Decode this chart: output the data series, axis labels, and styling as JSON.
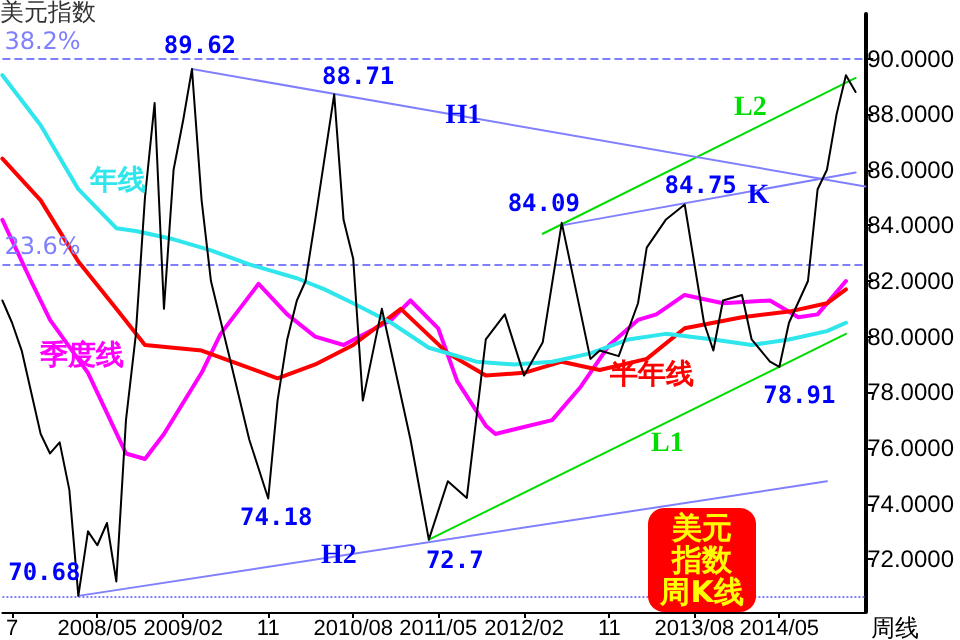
{
  "chart_data": {
    "type": "line",
    "title": "美元指数",
    "xlabel": "周线",
    "xlim": [
      "2007-07",
      "2015-02"
    ],
    "xticks": [
      {
        "value": "2007-08",
        "label": "7"
      },
      {
        "value": "2008-05",
        "label": "2008/05"
      },
      {
        "value": "2009-02",
        "label": "2009/02"
      },
      {
        "value": "2009-11",
        "label": "11"
      },
      {
        "value": "2010-08",
        "label": "2010/08"
      },
      {
        "value": "2011-05",
        "label": "2011/05"
      },
      {
        "value": "2012-02",
        "label": "2012/02"
      },
      {
        "value": "2012-11",
        "label": "11"
      },
      {
        "value": "2013-08",
        "label": "2013/08"
      },
      {
        "value": "2014-05",
        "label": "2014/05"
      }
    ],
    "ylim": [
      70.1,
      91.6
    ],
    "yticks": [
      {
        "value": 72,
        "label": "72.0000"
      },
      {
        "value": 74,
        "label": "74.0000"
      },
      {
        "value": 76,
        "label": "76.0000"
      },
      {
        "value": 78,
        "label": "78.0000"
      },
      {
        "value": 80,
        "label": "80.0000"
      },
      {
        "value": 82,
        "label": "82.0000"
      },
      {
        "value": 84,
        "label": "84.0000"
      },
      {
        "value": 86,
        "label": "86.0000"
      },
      {
        "value": 88,
        "label": "88.0000"
      },
      {
        "value": 90,
        "label": "90.0000"
      }
    ],
    "grid": false,
    "legend": false,
    "marker": "none",
    "series": [
      {
        "color": "#000000",
        "x": [
          "2007-07",
          "2007-08",
          "2007-09",
          "2007-11",
          "2007-12",
          "2008-01",
          "2008-02",
          "2008-03",
          "2008-04",
          "2008-05",
          "2008-06",
          "2008-07",
          "2008-08",
          "2008-09",
          "2008-10",
          "2008-11",
          "2008-12",
          "2009-01",
          "2009-02",
          "2009-03",
          "2009-04",
          "2009-05",
          "2009-07",
          "2009-09",
          "2009-11",
          "2009-12",
          "2010-01",
          "2010-02",
          "2010-03",
          "2010-04",
          "2010-06",
          "2010-07",
          "2010-08",
          "2010-09",
          "2010-11",
          "2011-02",
          "2011-04",
          "2011-06",
          "2011-08",
          "2011-10",
          "2011-12",
          "2012-02",
          "2012-04",
          "2012-06",
          "2012-07",
          "2012-09",
          "2012-10",
          "2012-12",
          "2013-02",
          "2013-03",
          "2013-05",
          "2013-07",
          "2013-09",
          "2013-10",
          "2013-11",
          "2014-01",
          "2014-02",
          "2014-04",
          "2014-05",
          "2014-06",
          "2014-08",
          "2014-09",
          "2014-10",
          "2014-11",
          "2014-12",
          "2015-01"
        ],
        "values": [
          81.3,
          80.5,
          79.5,
          76.5,
          75.8,
          76.2,
          74.5,
          70.68,
          73,
          72.5,
          73.3,
          71.2,
          77,
          80,
          85,
          88.4,
          81,
          86,
          87.8,
          89.62,
          84.9,
          82,
          79.2,
          76.3,
          74.18,
          77.7,
          79.9,
          81.3,
          82,
          84.2,
          88.71,
          84.2,
          82.8,
          77.7,
          81,
          76.3,
          72.7,
          74.8,
          74.2,
          79.9,
          80.8,
          78.6,
          79.8,
          84.09,
          82.5,
          79.2,
          79.5,
          79.3,
          81.2,
          83.2,
          84.2,
          84.75,
          80.5,
          79.5,
          81.3,
          81.5,
          79.9,
          79.1,
          78.91,
          80.5,
          82,
          85.3,
          86,
          88,
          89.4,
          88.8
        ]
      },
      {
        "name": "年线",
        "color": "#2ee6ec",
        "x": [
          "2007-07",
          "2007-11",
          "2008-03",
          "2008-07",
          "2008-09",
          "2009-01",
          "2009-05",
          "2009-09",
          "2010-02",
          "2010-05",
          "2010-08",
          "2010-12",
          "2011-04",
          "2011-09",
          "2012-01",
          "2012-05",
          "2012-09",
          "2013-01",
          "2013-05",
          "2013-10",
          "2014-02",
          "2014-06",
          "2014-10",
          "2014-12"
        ],
        "values": [
          89.4,
          87.6,
          85.3,
          83.9,
          83.8,
          83.5,
          83.1,
          82.6,
          82.1,
          81.7,
          81.2,
          80.5,
          79.6,
          79.1,
          79.0,
          79.1,
          79.4,
          79.9,
          80.1,
          79.9,
          79.7,
          79.9,
          80.2,
          80.5
        ]
      },
      {
        "name": "半年线",
        "color": "#ff0000",
        "x": [
          "2007-07",
          "2007-11",
          "2008-03",
          "2008-07",
          "2008-10",
          "2009-04",
          "2009-12",
          "2010-04",
          "2010-08",
          "2011-01",
          "2011-06",
          "2011-10",
          "2012-02",
          "2012-06",
          "2012-10",
          "2013-03",
          "2013-07",
          "2014-01",
          "2014-06",
          "2014-10",
          "2014-12"
        ],
        "values": [
          86.4,
          84.9,
          82.7,
          81.0,
          79.7,
          79.5,
          78.5,
          79.0,
          79.7,
          81.0,
          79.4,
          78.6,
          78.7,
          79.1,
          78.8,
          79.2,
          80.3,
          80.7,
          80.9,
          81.2,
          81.7
        ]
      },
      {
        "name": "季度线",
        "color": "#ff00ff",
        "x": [
          "2007-07",
          "2007-10",
          "2007-12",
          "2008-04",
          "2008-08",
          "2008-10",
          "2008-12",
          "2009-04",
          "2009-06",
          "2009-10",
          "2010-01",
          "2010-04",
          "2010-07",
          "2010-12",
          "2011-02",
          "2011-05",
          "2011-07",
          "2011-10",
          "2011-11",
          "2012-05",
          "2012-08",
          "2012-11",
          "2013-02",
          "2013-04",
          "2013-07",
          "2013-11",
          "2014-04",
          "2014-07",
          "2014-09",
          "2014-12"
        ],
        "values": [
          84.2,
          82.0,
          80.6,
          78.7,
          75.8,
          75.6,
          76.5,
          78.7,
          80.1,
          81.9,
          80.8,
          80.0,
          79.7,
          80.6,
          81.3,
          80.3,
          78.4,
          76.8,
          76.5,
          77.0,
          78.2,
          79.7,
          80.6,
          80.8,
          81.5,
          81.2,
          81.3,
          80.7,
          80.8,
          82.0
        ]
      },
      {
        "name": "H1",
        "color": "#8080ff",
        "x": [
          "2009-03",
          "2015-02"
        ],
        "values": [
          89.62,
          85.4
        ]
      },
      {
        "name": "H2",
        "color": "#8080ff",
        "x": [
          "2008-03",
          "2014-10"
        ],
        "values": [
          70.68,
          74.8
        ]
      },
      {
        "name": "L1",
        "color": "#00dd00",
        "x": [
          "2011-04",
          "2014-12"
        ],
        "values": [
          72.7,
          80.1
        ]
      },
      {
        "name": "L2",
        "color": "#00dd00",
        "x": [
          "2012-04",
          "2015-01"
        ],
        "values": [
          83.7,
          89.3
        ]
      },
      {
        "name": "K",
        "color": "#8080ff",
        "x": [
          "2012-06",
          "2015-01"
        ],
        "values": [
          84.0,
          85.9
        ]
      }
    ],
    "ref_lines": [
      {
        "axis": "y",
        "value": 90,
        "color": "#8080ff",
        "line_style": "dashed"
      },
      {
        "axis": "y",
        "value": 82.6,
        "color": "#8080ff",
        "line_style": "dashed"
      },
      {
        "axis": "y",
        "value": 70.68,
        "color": "#8080ff",
        "line_style": "dotted"
      }
    ],
    "annotations": [
      {
        "text": "89.62",
        "x": "2009-03",
        "y": 89.62
      },
      {
        "text": "88.71",
        "x": "2010-06",
        "y": 88.71
      },
      {
        "text": "74.18",
        "x": "2009-11",
        "y": 74.18
      },
      {
        "text": "72.7",
        "x": "2011-04",
        "y": 72.7
      },
      {
        "text": "70.68",
        "x": "2008-03",
        "y": 70.68
      },
      {
        "text": "84.09",
        "x": "2012-06",
        "y": 84.09
      },
      {
        "text": "84.75",
        "x": "2013-07",
        "y": 84.75
      },
      {
        "text": "78.91",
        "x": "2014-05",
        "y": 78.91
      },
      "美元指数周K线",
      {
        "text": "38.2%",
        "x": "2007-07",
        "y": 90
      },
      {
        "text": "23.6%",
        "x": "2007-07",
        "y": 82.6
      }
    ]
  }
}
